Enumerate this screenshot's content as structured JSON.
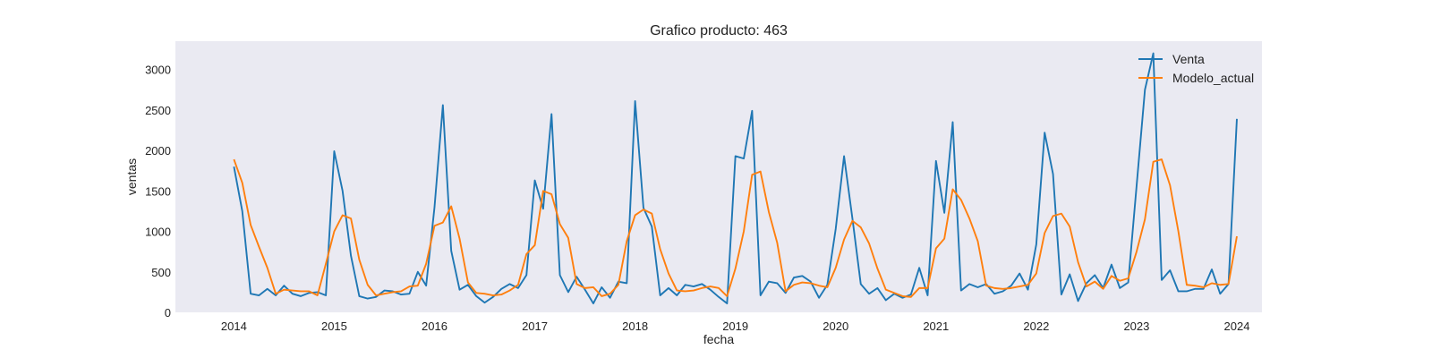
{
  "chart_data": {
    "type": "line",
    "title": "Grafico producto: 463",
    "xlabel": "fecha",
    "ylabel": "ventas",
    "x_axis_type": "date",
    "x_start": "2014-01",
    "x_frequency": "monthly",
    "xlim": [
      "2013-06",
      "2024-04"
    ],
    "ylim": [
      0,
      3350
    ],
    "x_ticks": [
      "2014",
      "2015",
      "2016",
      "2017",
      "2018",
      "2019",
      "2020",
      "2021",
      "2022",
      "2023",
      "2024"
    ],
    "y_ticks": [
      0,
      500,
      1000,
      1500,
      2000,
      2500,
      3000
    ],
    "grid": false,
    "legend_position": "top-right",
    "background": "#eaeaf2",
    "series": [
      {
        "name": "Venta",
        "color": "#1f77b4",
        "values": [
          1800,
          1250,
          230,
          210,
          290,
          210,
          330,
          230,
          200,
          240,
          250,
          210,
          1990,
          1500,
          700,
          200,
          170,
          190,
          270,
          260,
          220,
          230,
          500,
          330,
          1300,
          2560,
          760,
          280,
          340,
          200,
          120,
          190,
          290,
          350,
          300,
          460,
          1630,
          1280,
          2450,
          460,
          250,
          440,
          280,
          110,
          310,
          180,
          380,
          360,
          2610,
          1290,
          1060,
          210,
          300,
          210,
          340,
          320,
          350,
          280,
          190,
          110,
          1930,
          1900,
          2490,
          210,
          380,
          360,
          240,
          430,
          450,
          380,
          180,
          340,
          1030,
          1930,
          1160,
          350,
          230,
          300,
          150,
          230,
          180,
          220,
          550,
          210,
          1870,
          1230,
          2350,
          270,
          350,
          310,
          350,
          230,
          260,
          330,
          480,
          280,
          840,
          2220,
          1710,
          220,
          470,
          140,
          360,
          460,
          300,
          590,
          300,
          370,
          1560,
          2750,
          3200,
          400,
          520,
          260,
          260,
          290,
          290,
          530,
          230,
          350,
          2390
        ],
        "fill": null
      },
      {
        "name": "Modelo_actual",
        "color": "#ff7f0e",
        "values": [
          1890,
          1600,
          1080,
          810,
          550,
          230,
          280,
          270,
          260,
          260,
          210,
          600,
          1000,
          1200,
          1160,
          650,
          340,
          210,
          230,
          250,
          260,
          320,
          330,
          600,
          1070,
          1110,
          1310,
          910,
          370,
          240,
          230,
          210,
          220,
          270,
          340,
          720,
          830,
          1500,
          1460,
          1090,
          920,
          350,
          300,
          310,
          200,
          230,
          340,
          880,
          1200,
          1270,
          1220,
          780,
          480,
          270,
          260,
          270,
          300,
          320,
          300,
          200,
          540,
          1000,
          1700,
          1740,
          1240,
          860,
          260,
          340,
          370,
          360,
          330,
          310,
          550,
          900,
          1130,
          1050,
          850,
          540,
          280,
          240,
          200,
          190,
          300,
          300,
          790,
          910,
          1520,
          1390,
          1160,
          880,
          330,
          300,
          290,
          300,
          320,
          340,
          480,
          980,
          1190,
          1220,
          1060,
          620,
          320,
          380,
          290,
          450,
          390,
          420,
          750,
          1150,
          1860,
          1890,
          1570,
          1000,
          340,
          330,
          310,
          360,
          340,
          350,
          940
        ],
        "fill": null
      }
    ]
  }
}
